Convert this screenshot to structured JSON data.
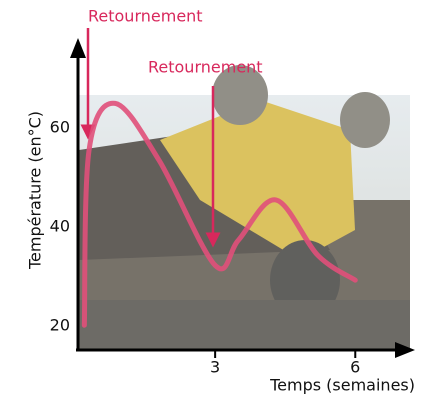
{
  "chart_data": {
    "type": "line",
    "y_label": "Température (en°C)",
    "x_label": "Temps (semaines)",
    "annotations": [
      "Retournement",
      "Retournement"
    ],
    "x": [
      0.2,
      0.3,
      0.86,
      1.8,
      3.0,
      3.5,
      4.3,
      5.2,
      6.0
    ],
    "series": [
      {
        "color": "#e0507a",
        "values": [
          20.2,
          55.5,
          65,
          53.5,
          32.3,
          37.4,
          45.5,
          34.3,
          29.3
        ]
      }
    ],
    "xlim": [
      0,
      7.3
    ],
    "ylim": [
      15,
      78
    ],
    "xticks": [
      3,
      6
    ],
    "yticks": [
      20,
      40,
      60
    ],
    "grid": false
  }
}
